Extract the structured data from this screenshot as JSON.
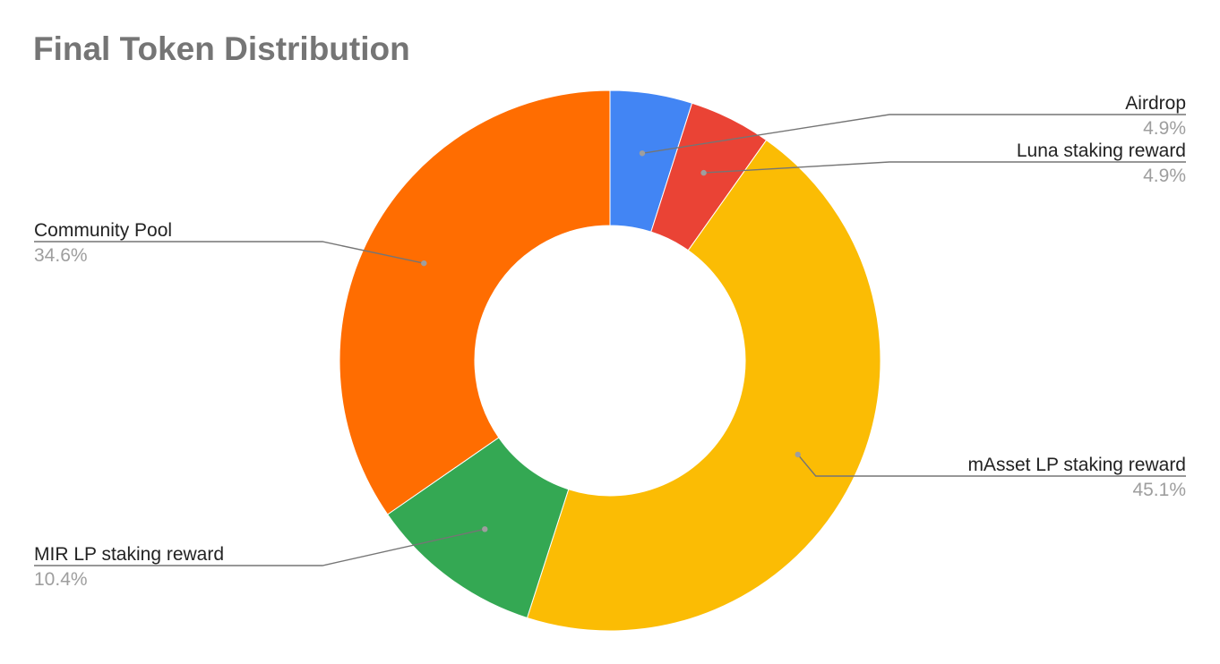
{
  "chart_data": {
    "type": "pie",
    "donut": true,
    "title": "Final Token Distribution",
    "slices": [
      {
        "label": "Airdrop",
        "value": 4.9,
        "value_label": "4.9%",
        "color": "#4285F4"
      },
      {
        "label": "Luna staking reward",
        "value": 4.9,
        "value_label": "4.9%",
        "color": "#EA4335"
      },
      {
        "label": "mAsset LP staking reward",
        "value": 45.1,
        "value_label": "45.1%",
        "color": "#FBBC04"
      },
      {
        "label": "MIR LP staking reward",
        "value": 10.4,
        "value_label": "10.4%",
        "color": "#34A853"
      },
      {
        "label": "Community Pool",
        "value": 34.6,
        "value_label": "34.6%",
        "color": "#FF6D01"
      }
    ],
    "legend": "none",
    "labels": "outside with leader lines"
  }
}
